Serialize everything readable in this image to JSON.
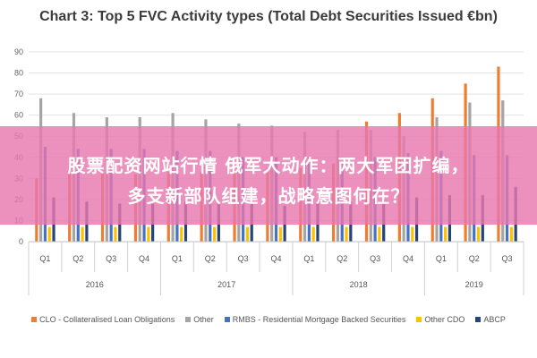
{
  "overlay": {
    "line1": "股票配资网站行情 俄军大动作：两大军团扩编，",
    "line2": "多支新部队组建，战略意图何在？"
  },
  "chart_data": {
    "type": "bar",
    "title": "Chart 3: Top 5 FVC Activity types (Total Debt Securities Issued €bn)",
    "xlabel": "",
    "ylabel": "",
    "ylim": [
      0,
      90
    ],
    "yticks": [
      0,
      10,
      20,
      30,
      40,
      50,
      60,
      70,
      80,
      90
    ],
    "grid": true,
    "legend_position": "bottom",
    "categories": [
      "Q1",
      "Q2",
      "Q3",
      "Q4",
      "Q1",
      "Q2",
      "Q3",
      "Q4",
      "Q1",
      "Q2",
      "Q3",
      "Q4",
      "Q1",
      "Q2",
      "Q3"
    ],
    "years": [
      {
        "label": "2016",
        "count": 4
      },
      {
        "label": "2017",
        "count": 4
      },
      {
        "label": "2018",
        "count": 4
      },
      {
        "label": "2019",
        "count": 3
      }
    ],
    "series": [
      {
        "name": "CLO - Collateralised Loan Obligations",
        "color": "#ed7d31",
        "values": [
          30,
          32,
          33,
          32,
          33,
          33,
          33,
          35,
          35,
          37,
          57,
          61,
          68,
          75,
          83
        ]
      },
      {
        "name": "Other",
        "color": "#a5a5a5",
        "values": [
          68,
          61,
          59,
          59,
          61,
          58,
          56,
          55,
          52,
          53,
          53,
          50,
          59,
          66,
          67
        ]
      },
      {
        "name": "RMBS - Residential Mortgage Backed Securities",
        "color": "#4472c4",
        "values": [
          45,
          44,
          44,
          44,
          43,
          43,
          40,
          40,
          40,
          37,
          40,
          42,
          43,
          41,
          41
        ]
      },
      {
        "name": "Other CDO",
        "color": "#ffc000",
        "values": [
          7,
          7,
          7,
          7,
          7,
          7,
          7,
          7,
          7,
          7,
          7,
          7,
          7,
          7,
          7
        ]
      },
      {
        "name": "ABCP",
        "color": "#264478",
        "values": [
          21,
          19,
          18,
          18,
          19,
          18,
          18,
          17,
          18,
          19,
          20,
          21,
          22,
          22,
          26
        ]
      }
    ]
  }
}
